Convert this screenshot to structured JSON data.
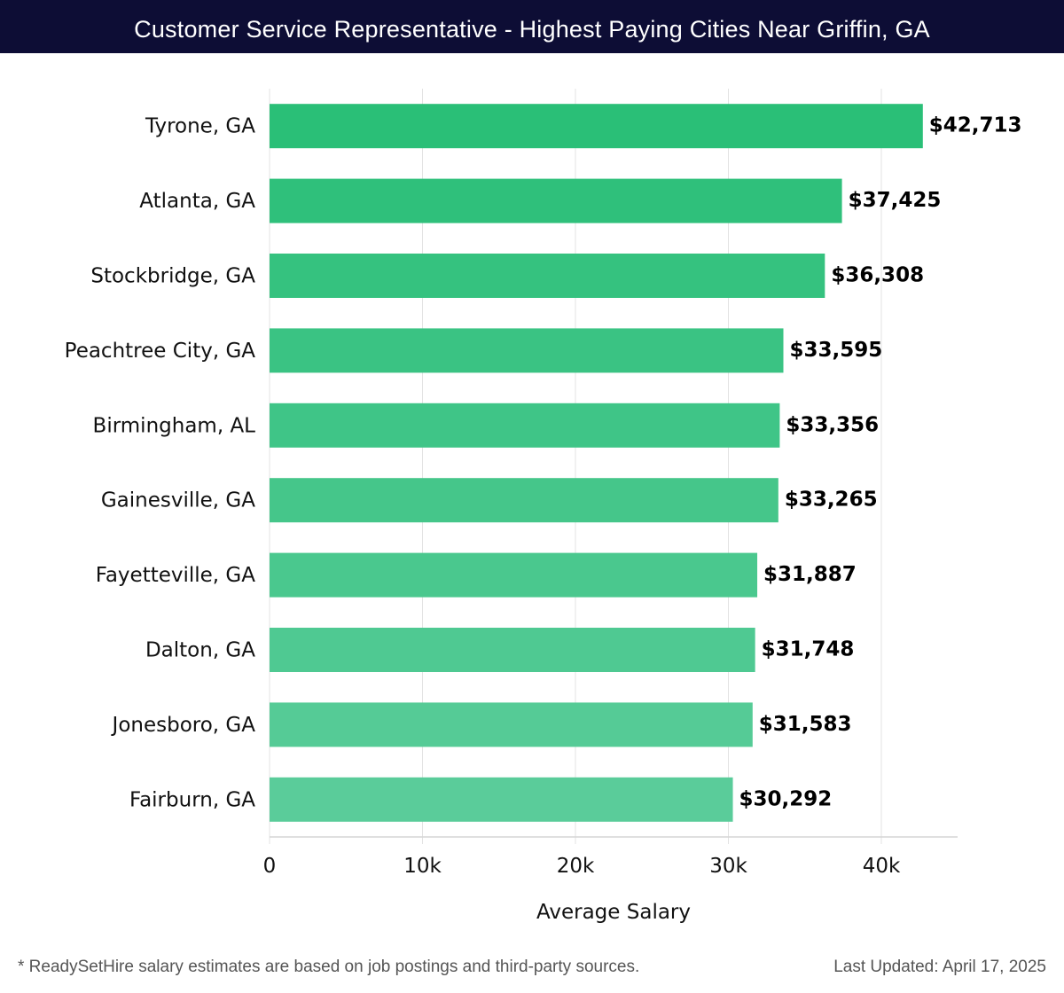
{
  "chart_data": {
    "type": "bar",
    "orientation": "horizontal",
    "title": "Customer Service Representative - Highest Paying Cities Near Griffin, GA",
    "categories": [
      "Tyrone, GA",
      "Atlanta, GA",
      "Stockbridge, GA",
      "Peachtree City, GA",
      "Birmingham, AL",
      "Gainesville, GA",
      "Fayetteville, GA",
      "Dalton, GA",
      "Jonesboro, GA",
      "Fairburn, GA"
    ],
    "values": [
      42713,
      37425,
      36308,
      33595,
      33356,
      33265,
      31887,
      31748,
      31583,
      30292
    ],
    "value_labels": [
      "$42,713",
      "$37,425",
      "$36,308",
      "$33,595",
      "$33,356",
      "$33,265",
      "$31,887",
      "$31,748",
      "$31,583",
      "$30,292"
    ],
    "xlabel": "Average Salary",
    "ylabel": "",
    "xlim": [
      0,
      45000
    ],
    "xticks": [
      0,
      10000,
      20000,
      30000,
      40000
    ],
    "xtick_labels": [
      "0",
      "10k",
      "20k",
      "30k",
      "40k"
    ],
    "grid": true,
    "colors": {
      "top": "#2abf77",
      "bottom": "#5acc9a"
    }
  },
  "footer": {
    "note": "* ReadySetHire salary estimates are based on job postings and third-party sources.",
    "updated": "Last Updated: April 17, 2025"
  }
}
